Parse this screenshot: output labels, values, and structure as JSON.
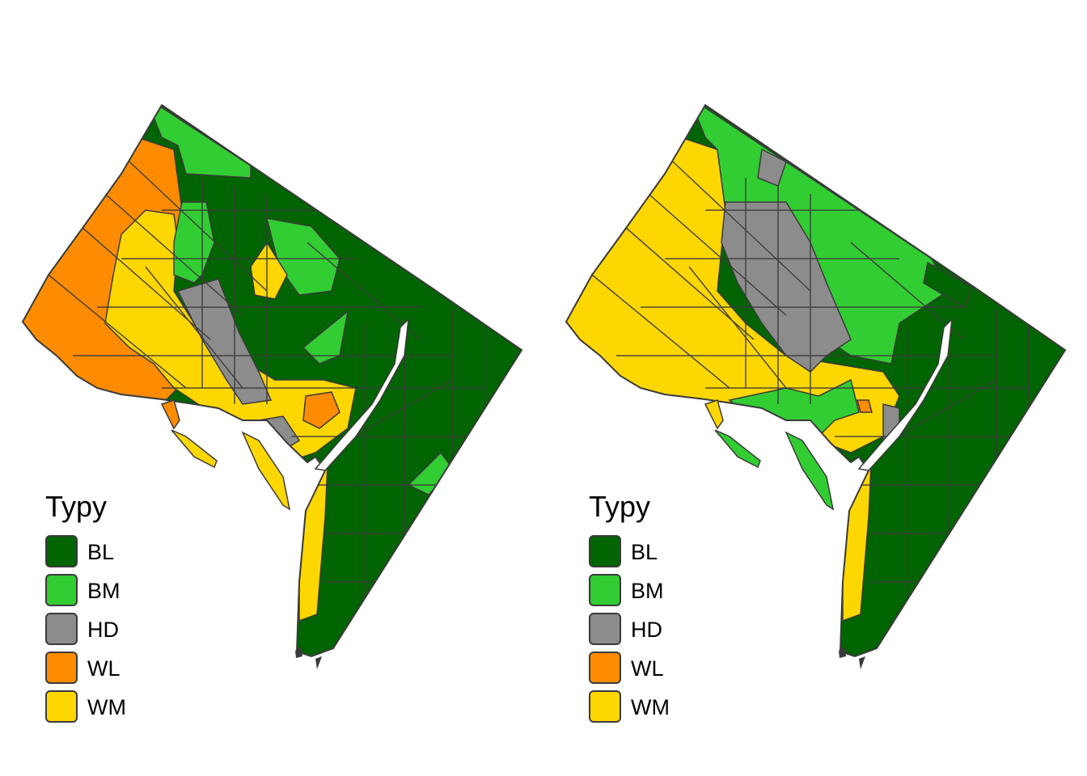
{
  "colors": {
    "BL": "#006400",
    "BM": "#32CD32",
    "HD": "#8C8C8C",
    "WL": "#FF8C00",
    "WM": "#FFD700",
    "border": "#3a3a3a"
  },
  "maps": [
    {
      "legend": {
        "title": "Typy",
        "items": [
          {
            "code": "BL",
            "label": "BL"
          },
          {
            "code": "BM",
            "label": "BM"
          },
          {
            "code": "HD",
            "label": "HD"
          },
          {
            "code": "WL",
            "label": "WL"
          },
          {
            "code": "WM",
            "label": "WM"
          }
        ]
      }
    },
    {
      "legend": {
        "title": "Typy",
        "items": [
          {
            "code": "BL",
            "label": "BL"
          },
          {
            "code": "BM",
            "label": "BM"
          },
          {
            "code": "HD",
            "label": "HD"
          },
          {
            "code": "WL",
            "label": "WL"
          },
          {
            "code": "WM",
            "label": "WM"
          }
        ]
      }
    }
  ]
}
